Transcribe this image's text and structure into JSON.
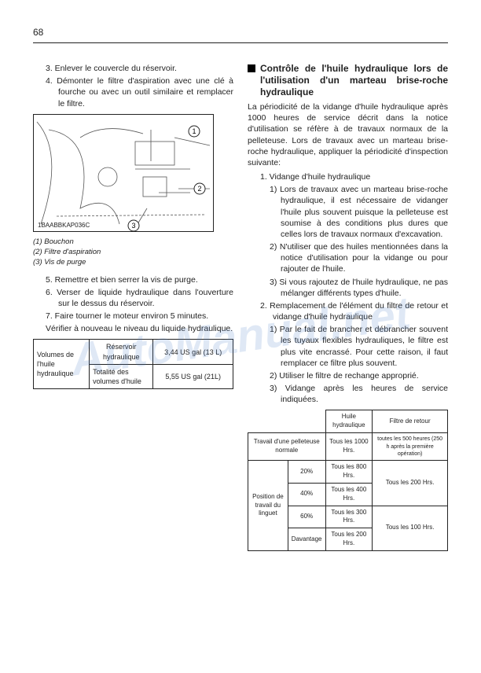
{
  "pageNumber": "68",
  "left": {
    "steps_a": [
      {
        "n": "3.",
        "t": "Enlever le couvercle du réservoir."
      },
      {
        "n": "4.",
        "t": "Démonter le filtre d'aspiration avec une clé à fourche ou avec un outil similaire et remplacer le filtre."
      }
    ],
    "figure_code": "1BAABBKAP036C",
    "captions": [
      "(1) Bouchon",
      "(2) Filtre d'aspiration",
      "(3) Vis de purge"
    ],
    "steps_b": [
      {
        "n": "5.",
        "t": "Remettre et bien serrer la vis de purge."
      },
      {
        "n": "6.",
        "t": "Verser de liquide hydraulique dans l'ouverture sur le dessus du réservoir."
      },
      {
        "n": "7.",
        "t": "Faire tourner le moteur environ 5 minutes."
      }
    ],
    "check_line": "Vérifier à nouveau le niveau du liquide hydraulique.",
    "table1": {
      "rowspan_label": "Volumes de l'huile hydraulique",
      "rows": [
        [
          "Réservoir hydraulique",
          "3,44 US gal (13 L)"
        ],
        [
          "Totalité des volumes d'huile",
          "5,55 US gal (21L)"
        ]
      ]
    }
  },
  "right": {
    "heading": "Contrôle de l'huile hydraulique lors de l'utilisation d'un marteau brise-roche hydraulique",
    "intro": "La périodicité de la vidange d'huile hydraulique après 1000 heures de service décrit dans la notice d'utilisation se réfère à de travaux normaux de la pelleteuse. Lors de travaux avec un marteau brise-roche hydraulique, appliquer la périodicité d'inspection suivante:",
    "items": [
      {
        "n": "1.",
        "t": "Vidange d'huile hydraulique",
        "sub": [
          {
            "n": "1)",
            "t": "Lors de travaux avec un marteau brise-roche hydraulique, il est nécessaire de vidanger l'huile plus souvent puisque la pelleteuse est soumise à des conditions plus dures que celles lors de travaux normaux d'excavation."
          },
          {
            "n": "2)",
            "t": "N'utiliser que des huiles mentionnées dans la notice d'utilisation pour la vidange ou pour rajouter de l'huile."
          },
          {
            "n": "3)",
            "t": "Si vous rajoutez de l'huile hydraulique, ne pas mélanger différents types d'huile."
          }
        ]
      },
      {
        "n": "2.",
        "t": "Remplacement de l'élément du filtre de retour et vidange d'huile hydraulique",
        "sub": [
          {
            "n": "1)",
            "t": "Par le fait de brancher et débrancher souvent les tuyaux flexibles hydrauliques, le filtre est plus vite encrassé. Pour cette raison, il faut remplacer ce filtre plus souvent."
          },
          {
            "n": "2)",
            "t": "Utiliser le filtre de rechange approprié."
          },
          {
            "n": "3)",
            "t": "Vidange après les heures de service indiquées."
          }
        ]
      }
    ],
    "table2": {
      "headers": [
        "",
        "",
        "Huile hydraulique",
        "Filtre de retour"
      ],
      "row1": {
        "label": "Travail d'une pelleteuse normale",
        "hyd": "Tous les 1000 Hrs.",
        "filt": "toutes les 500 heures (250 h après la première opération)"
      },
      "group_label": "Position de travail du linguet",
      "rows": [
        {
          "pct": "20%",
          "hyd": "Tous les 800 Hrs.",
          "filt_span": "Tous les 200 Hrs."
        },
        {
          "pct": "40%",
          "hyd": "Tous les 400 Hrs."
        },
        {
          "pct": "60%",
          "hyd": "Tous les 300 Hrs.",
          "filt_span": "Tous les 100 Hrs."
        },
        {
          "pct": "Davantage",
          "hyd": "Tous les 200 Hrs."
        }
      ]
    }
  },
  "watermark": "AutoManual.net"
}
